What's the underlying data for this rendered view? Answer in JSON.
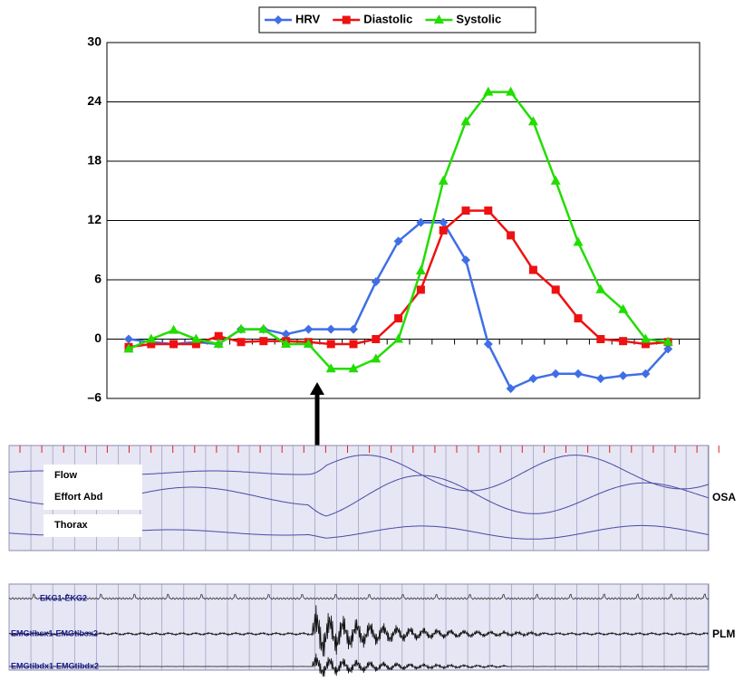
{
  "chart_data": {
    "type": "line",
    "categories": [
      null,
      null,
      null,
      null,
      null,
      null,
      null,
      null,
      null,
      null,
      null,
      null,
      null,
      null,
      null,
      null,
      null,
      null,
      null,
      null,
      null,
      null,
      null,
      null,
      null
    ],
    "series": [
      {
        "name": "HRV",
        "color": "#3f6fe6",
        "marker": "diamond",
        "values": [
          0,
          -0.3,
          -0.5,
          -0.3,
          -0.5,
          1,
          1,
          0.5,
          1,
          1,
          1,
          5.8,
          9.9,
          11.8,
          11.8,
          8,
          -0.5,
          -5,
          -4,
          -3.5,
          -3.5,
          -4,
          -3.7,
          -3.5,
          -1
        ]
      },
      {
        "name": "Diastolic",
        "color": "#ee1111",
        "marker": "square",
        "values": [
          -0.8,
          -0.5,
          -0.5,
          -0.5,
          0.3,
          -0.3,
          -0.2,
          -0.2,
          -0.3,
          -0.5,
          -0.5,
          0,
          2.1,
          5,
          11,
          13,
          13,
          10.5,
          7,
          5,
          2.1,
          0,
          -0.2,
          -0.5,
          -0.3
        ]
      },
      {
        "name": "Systolic",
        "color": "#22dd00",
        "marker": "triangle",
        "values": [
          -1,
          0,
          0.9,
          0,
          -0.5,
          1,
          1,
          -0.5,
          -0.5,
          -3,
          -3,
          -2,
          0,
          6.9,
          16,
          22,
          25,
          25,
          22,
          16,
          9.8,
          5,
          3,
          0,
          -0.3
        ]
      }
    ],
    "ylim": [
      -6,
      30
    ],
    "yticks": [
      30,
      24,
      18,
      12,
      6,
      0,
      {
        "value": -6,
        "label": "–6"
      }
    ],
    "grid": true,
    "legend": "top"
  },
  "panels": {
    "osa": {
      "label": "OSA",
      "channels": [
        "Flow",
        "Effort Abd",
        "Thorax"
      ]
    },
    "plm": {
      "label": "PLM",
      "channels": [
        "EKG1-EKG2",
        "EMGtibsx1-EMGtibsx2",
        "EMGtibdx1-EMGtibdx2"
      ]
    }
  }
}
